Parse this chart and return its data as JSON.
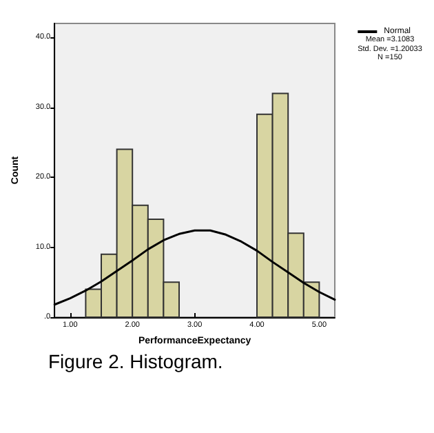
{
  "chart_data": {
    "type": "histogram",
    "xlabel": "PerformanceExpectancy",
    "ylabel": "Count",
    "bins": [
      1.25,
      1.5,
      1.75,
      2.0,
      2.25,
      2.5,
      2.75,
      3.0,
      3.25,
      3.5,
      3.75,
      4.0,
      4.25,
      4.5,
      4.75,
      5.0
    ],
    "values": [
      4,
      9,
      24,
      16,
      14,
      5,
      0,
      0,
      0,
      0,
      0,
      29,
      32,
      12,
      5
    ],
    "color": "#d8d5a2",
    "series": [
      {
        "type": "line",
        "name": "Normal",
        "color": "#000000",
        "x": [
          0.75,
          1.0,
          1.25,
          1.5,
          1.75,
          2.0,
          2.25,
          2.5,
          2.75,
          3.0,
          3.25,
          3.5,
          3.75,
          4.0,
          4.25,
          4.5,
          4.75,
          5.0,
          5.25
        ],
        "values": [
          1.8,
          2.7,
          3.8,
          5.1,
          6.6,
          8.1,
          9.7,
          11.0,
          11.9,
          12.4,
          12.4,
          11.8,
          10.8,
          9.5,
          7.9,
          6.4,
          4.9,
          3.6,
          2.5
        ]
      }
    ],
    "xlim": [
      0.75,
      5.25
    ],
    "xticks": [
      {
        "value": 1,
        "label": "1.00"
      },
      {
        "value": 2,
        "label": "2.00"
      },
      {
        "value": 3,
        "label": "3.00"
      },
      {
        "value": 4,
        "label": "4.00"
      },
      {
        "value": 5,
        "label": "5.00"
      }
    ],
    "ylim": [
      0,
      42
    ],
    "yticks": [
      {
        "value": 0,
        "label": ".0"
      },
      {
        "value": 10,
        "label": "10.0"
      },
      {
        "value": 20,
        "label": "20.0"
      },
      {
        "value": 30,
        "label": "30.0"
      },
      {
        "value": 40,
        "label": "40.0"
      }
    ],
    "legend": "top right",
    "grid": false,
    "marker": "none",
    "annotations": [
      "Mean =3.1083",
      "Std. Dev. =1.20033",
      "N =150",
      "Figure 2. Histogram."
    ]
  }
}
